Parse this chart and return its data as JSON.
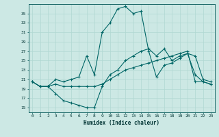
{
  "xlabel": "Humidex (Indice chaleur)",
  "bg_color": "#cce8e4",
  "line_color": "#006666",
  "grid_color": "#b0d8d2",
  "xlim": [
    -0.5,
    23.5
  ],
  "ylim": [
    14,
    37
  ],
  "yticks": [
    15,
    17,
    19,
    21,
    23,
    25,
    27,
    29,
    31,
    33,
    35
  ],
  "xticks": [
    0,
    1,
    2,
    3,
    4,
    5,
    6,
    7,
    8,
    9,
    10,
    11,
    12,
    13,
    14,
    15,
    16,
    17,
    18,
    19,
    20,
    21,
    22,
    23
  ],
  "line1_x": [
    0,
    1,
    2,
    3,
    4,
    5,
    6,
    7,
    8,
    9,
    10,
    11,
    12,
    13,
    14,
    15,
    16,
    17,
    18,
    19,
    20,
    21,
    22,
    23
  ],
  "line1_y": [
    20.5,
    19.5,
    19.5,
    18.0,
    16.5,
    16.0,
    15.5,
    15.0,
    15.0,
    19.5,
    22.0,
    23.0,
    25.0,
    26.0,
    27.0,
    27.5,
    26.0,
    27.5,
    25.0,
    26.0,
    26.5,
    26.0,
    21.0,
    20.5
  ],
  "line2_x": [
    0,
    1,
    2,
    3,
    4,
    5,
    6,
    7,
    8,
    9,
    10,
    11,
    12,
    13,
    14,
    15,
    16,
    17,
    18,
    19,
    20,
    21,
    22,
    23
  ],
  "line2_y": [
    20.5,
    19.5,
    19.5,
    21.0,
    20.5,
    21.0,
    21.5,
    26.0,
    22.0,
    31.0,
    33.0,
    36.0,
    36.5,
    35.0,
    35.5,
    27.0,
    21.5,
    24.0,
    24.5,
    25.5,
    26.5,
    22.0,
    20.5,
    20.0
  ],
  "line3_x": [
    0,
    1,
    2,
    3,
    4,
    5,
    6,
    7,
    8,
    9,
    10,
    11,
    12,
    13,
    14,
    15,
    16,
    17,
    18,
    19,
    20,
    21,
    22,
    23
  ],
  "line3_y": [
    20.5,
    19.5,
    19.5,
    20.0,
    19.5,
    19.5,
    19.5,
    19.5,
    19.5,
    20.0,
    21.0,
    22.0,
    23.0,
    23.5,
    24.0,
    24.5,
    25.0,
    25.5,
    26.0,
    26.5,
    27.0,
    20.5,
    20.5,
    20.0
  ]
}
